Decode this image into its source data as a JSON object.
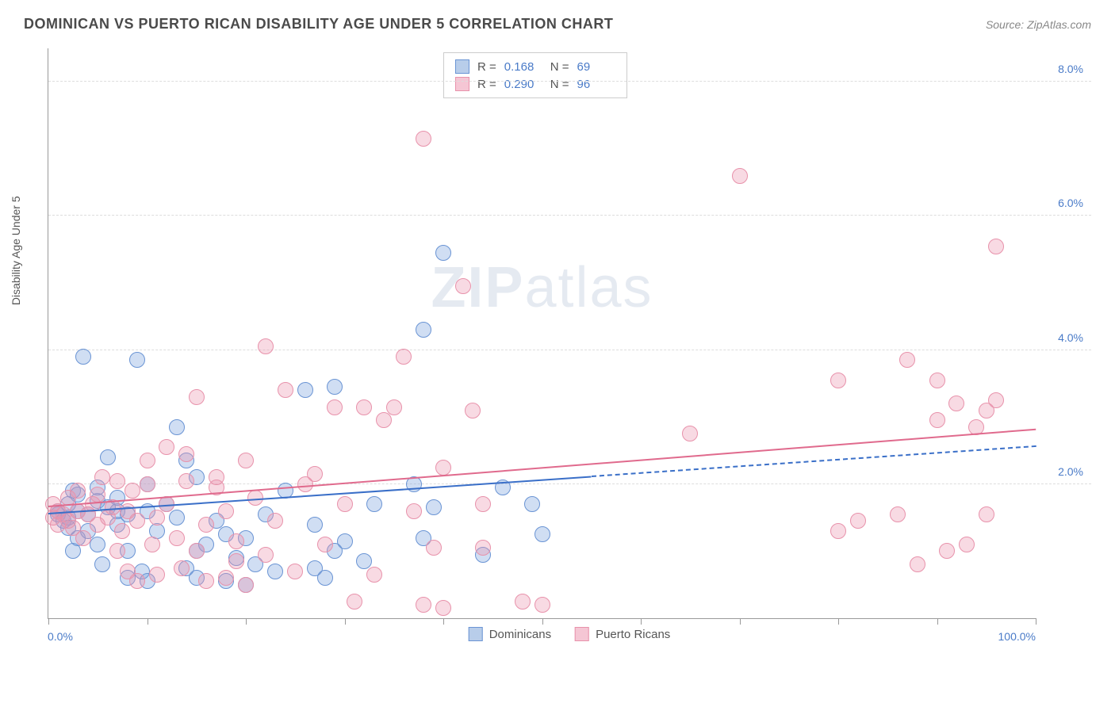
{
  "header": {
    "title": "DOMINICAN VS PUERTO RICAN DISABILITY AGE UNDER 5 CORRELATION CHART",
    "source_prefix": "Source: ",
    "source_link": "ZipAtlas.com"
  },
  "chart": {
    "type": "scatter",
    "y_axis_label": "Disability Age Under 5",
    "x_min_label": "0.0%",
    "x_max_label": "100.0%",
    "xlim": [
      0,
      100
    ],
    "ylim": [
      0,
      8.5
    ],
    "y_ticks": [
      {
        "value": 2.0,
        "label": "2.0%"
      },
      {
        "value": 4.0,
        "label": "4.0%"
      },
      {
        "value": 6.0,
        "label": "6.0%"
      },
      {
        "value": 8.0,
        "label": "8.0%"
      }
    ],
    "x_tick_positions": [
      0,
      10,
      20,
      30,
      40,
      50,
      60,
      70,
      80,
      90,
      100
    ],
    "grid_color": "#dddddd",
    "background_color": "#ffffff",
    "axis_color": "#999999",
    "tick_label_color": "#4a7bc8",
    "marker_radius": 10,
    "marker_stroke_width": 1,
    "watermark": "ZIPatlas",
    "series": [
      {
        "name": "Dominicans",
        "fill_color": "rgba(120, 160, 220, 0.35)",
        "stroke_color": "#6a94d4",
        "swatch_fill": "#b8cdea",
        "swatch_border": "#6a94d4",
        "trend_color": "#3a6fc8",
        "trend_solid": {
          "x1": 0,
          "y1": 1.55,
          "x2": 55,
          "y2": 2.1
        },
        "trend_dashed": {
          "x1": 55,
          "y1": 2.1,
          "x2": 100,
          "y2": 2.55
        },
        "stats": {
          "r": "0.168",
          "n": "69"
        },
        "points": [
          [
            1,
            1.55
          ],
          [
            1,
            1.6
          ],
          [
            1.5,
            1.45
          ],
          [
            2,
            1.5
          ],
          [
            2,
            1.7
          ],
          [
            2,
            1.35
          ],
          [
            2.5,
            1.0
          ],
          [
            2.5,
            1.9
          ],
          [
            3,
            1.6
          ],
          [
            3,
            1.85
          ],
          [
            3,
            1.2
          ],
          [
            3.5,
            3.9
          ],
          [
            4,
            1.55
          ],
          [
            4,
            1.3
          ],
          [
            5,
            1.75
          ],
          [
            5,
            1.95
          ],
          [
            5,
            1.1
          ],
          [
            5.5,
            0.8
          ],
          [
            6,
            1.65
          ],
          [
            6,
            2.4
          ],
          [
            7,
            1.4
          ],
          [
            7,
            1.6
          ],
          [
            7,
            1.8
          ],
          [
            8,
            0.6
          ],
          [
            8,
            1.0
          ],
          [
            8,
            1.55
          ],
          [
            9,
            3.85
          ],
          [
            9.5,
            0.7
          ],
          [
            10,
            1.6
          ],
          [
            10,
            2.0
          ],
          [
            10,
            0.55
          ],
          [
            11,
            1.3
          ],
          [
            12,
            1.7
          ],
          [
            13,
            2.85
          ],
          [
            13,
            1.5
          ],
          [
            14,
            2.35
          ],
          [
            14,
            0.75
          ],
          [
            15,
            0.6
          ],
          [
            15,
            1.0
          ],
          [
            15,
            2.1
          ],
          [
            16,
            1.1
          ],
          [
            17,
            1.45
          ],
          [
            18,
            0.55
          ],
          [
            18,
            1.25
          ],
          [
            19,
            0.9
          ],
          [
            20,
            0.5
          ],
          [
            20,
            1.2
          ],
          [
            21,
            0.8
          ],
          [
            22,
            1.55
          ],
          [
            23,
            0.7
          ],
          [
            24,
            1.9
          ],
          [
            26,
            3.4
          ],
          [
            27,
            0.75
          ],
          [
            27,
            1.4
          ],
          [
            28,
            0.6
          ],
          [
            29,
            3.45
          ],
          [
            29,
            1.0
          ],
          [
            30,
            1.15
          ],
          [
            32,
            0.85
          ],
          [
            33,
            1.7
          ],
          [
            37,
            2.0
          ],
          [
            38,
            4.3
          ],
          [
            38,
            1.2
          ],
          [
            39,
            1.65
          ],
          [
            40,
            5.45
          ],
          [
            44,
            0.95
          ],
          [
            46,
            1.95
          ],
          [
            49,
            1.7
          ],
          [
            50,
            1.25
          ]
        ]
      },
      {
        "name": "Puerto Ricans",
        "fill_color": "rgba(235, 150, 175, 0.35)",
        "stroke_color": "#e892ab",
        "swatch_fill": "#f5c6d4",
        "swatch_border": "#e892ab",
        "trend_color": "#e06a8d",
        "trend_solid": {
          "x1": 0,
          "y1": 1.65,
          "x2": 100,
          "y2": 2.8
        },
        "trend_dashed": null,
        "stats": {
          "r": "0.290",
          "n": "96"
        },
        "points": [
          [
            0.5,
            1.5
          ],
          [
            0.5,
            1.7
          ],
          [
            1,
            1.6
          ],
          [
            1,
            1.4
          ],
          [
            1.5,
            1.55
          ],
          [
            2,
            1.8
          ],
          [
            2,
            1.45
          ],
          [
            2.5,
            1.35
          ],
          [
            3,
            1.6
          ],
          [
            3,
            1.9
          ],
          [
            3.5,
            1.2
          ],
          [
            4,
            1.55
          ],
          [
            4.5,
            1.7
          ],
          [
            5,
            1.85
          ],
          [
            5,
            1.4
          ],
          [
            5.5,
            2.1
          ],
          [
            6,
            1.5
          ],
          [
            6.5,
            1.65
          ],
          [
            7,
            1.0
          ],
          [
            7,
            2.05
          ],
          [
            7.5,
            1.3
          ],
          [
            8,
            0.7
          ],
          [
            8,
            1.6
          ],
          [
            8.5,
            1.9
          ],
          [
            9,
            0.55
          ],
          [
            9,
            1.45
          ],
          [
            10,
            2.0
          ],
          [
            10,
            2.35
          ],
          [
            10.5,
            1.1
          ],
          [
            11,
            0.65
          ],
          [
            11,
            1.5
          ],
          [
            12,
            1.7
          ],
          [
            12,
            2.55
          ],
          [
            13,
            1.2
          ],
          [
            13.5,
            0.75
          ],
          [
            14,
            2.05
          ],
          [
            14,
            2.45
          ],
          [
            15,
            1.0
          ],
          [
            15,
            3.3
          ],
          [
            16,
            0.55
          ],
          [
            16,
            1.4
          ],
          [
            17,
            1.95
          ],
          [
            17,
            2.1
          ],
          [
            18,
            0.6
          ],
          [
            18,
            1.6
          ],
          [
            19,
            0.85
          ],
          [
            19,
            1.15
          ],
          [
            20,
            0.5
          ],
          [
            20,
            2.35
          ],
          [
            21,
            1.8
          ],
          [
            22,
            0.95
          ],
          [
            22,
            4.05
          ],
          [
            23,
            1.45
          ],
          [
            24,
            3.4
          ],
          [
            25,
            0.7
          ],
          [
            26,
            2.0
          ],
          [
            27,
            2.15
          ],
          [
            28,
            1.1
          ],
          [
            29,
            3.15
          ],
          [
            30,
            1.7
          ],
          [
            31,
            0.25
          ],
          [
            32,
            3.15
          ],
          [
            33,
            0.65
          ],
          [
            34,
            2.95
          ],
          [
            35,
            3.15
          ],
          [
            36,
            3.9
          ],
          [
            37,
            1.6
          ],
          [
            38,
            0.2
          ],
          [
            38,
            7.15
          ],
          [
            39,
            1.05
          ],
          [
            40,
            2.25
          ],
          [
            40,
            0.15
          ],
          [
            42,
            4.95
          ],
          [
            43,
            3.1
          ],
          [
            44,
            1.05
          ],
          [
            44,
            1.7
          ],
          [
            48,
            0.25
          ],
          [
            50,
            0.2
          ],
          [
            65,
            2.75
          ],
          [
            70,
            6.6
          ],
          [
            80,
            1.3
          ],
          [
            80,
            3.55
          ],
          [
            82,
            1.45
          ],
          [
            86,
            1.55
          ],
          [
            87,
            3.85
          ],
          [
            88,
            0.8
          ],
          [
            90,
            3.55
          ],
          [
            90,
            2.95
          ],
          [
            91,
            1.0
          ],
          [
            92,
            3.2
          ],
          [
            93,
            1.1
          ],
          [
            94,
            2.85
          ],
          [
            95,
            1.55
          ],
          [
            95,
            3.1
          ],
          [
            96,
            3.25
          ],
          [
            96,
            5.55
          ]
        ]
      }
    ],
    "stats_labels": {
      "r": "R  =",
      "n": "N  ="
    },
    "legend_labels": {
      "dominicans": "Dominicans",
      "puerto_ricans": "Puerto Ricans"
    }
  }
}
